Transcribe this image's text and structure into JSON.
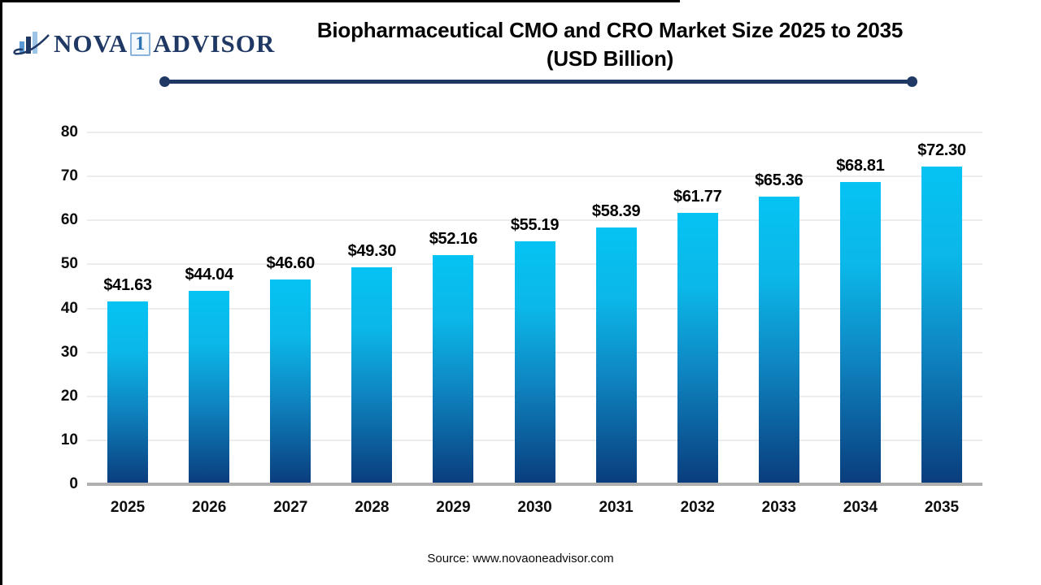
{
  "logo": {
    "nova": "NOVA",
    "one": "1",
    "advisor": "ADVISOR",
    "icon": "bar-chart-swoosh-icon"
  },
  "title": {
    "line1": "Biopharmaceutical CMO and CRO Market Size 2025 to 2035",
    "line2": "(USD Billion)"
  },
  "source": {
    "text": "Source: www.novaoneadvisor.com"
  },
  "colors": {
    "navy": "#1f3864",
    "grid": "#ececec",
    "baseline": "#b0b0b0",
    "bar-top": "#05c3f3",
    "bar-mid": "#0e86c2",
    "bar-bottom": "#0a3c7c"
  },
  "chart_data": {
    "type": "bar",
    "title": "Biopharmaceutical CMO and CRO Market Size 2025 to 2035 (USD Billion)",
    "categories": [
      "2025",
      "2026",
      "2027",
      "2028",
      "2029",
      "2030",
      "2031",
      "2032",
      "2033",
      "2034",
      "2035"
    ],
    "values": [
      41.63,
      44.04,
      46.6,
      49.3,
      52.16,
      55.19,
      58.39,
      61.77,
      65.36,
      68.81,
      72.3
    ],
    "bar_labels": [
      "$41.63",
      "$44.04",
      "$46.60",
      "$49.30",
      "$52.16",
      "$55.19",
      "$58.39",
      "$61.77",
      "$65.36",
      "$68.81",
      "$72.30"
    ],
    "xlabel": "",
    "ylabel": "",
    "ylim": [
      0,
      80
    ],
    "yticks": [
      0,
      10,
      20,
      30,
      40,
      50,
      60,
      70,
      80
    ],
    "grid": true,
    "legend": false
  }
}
